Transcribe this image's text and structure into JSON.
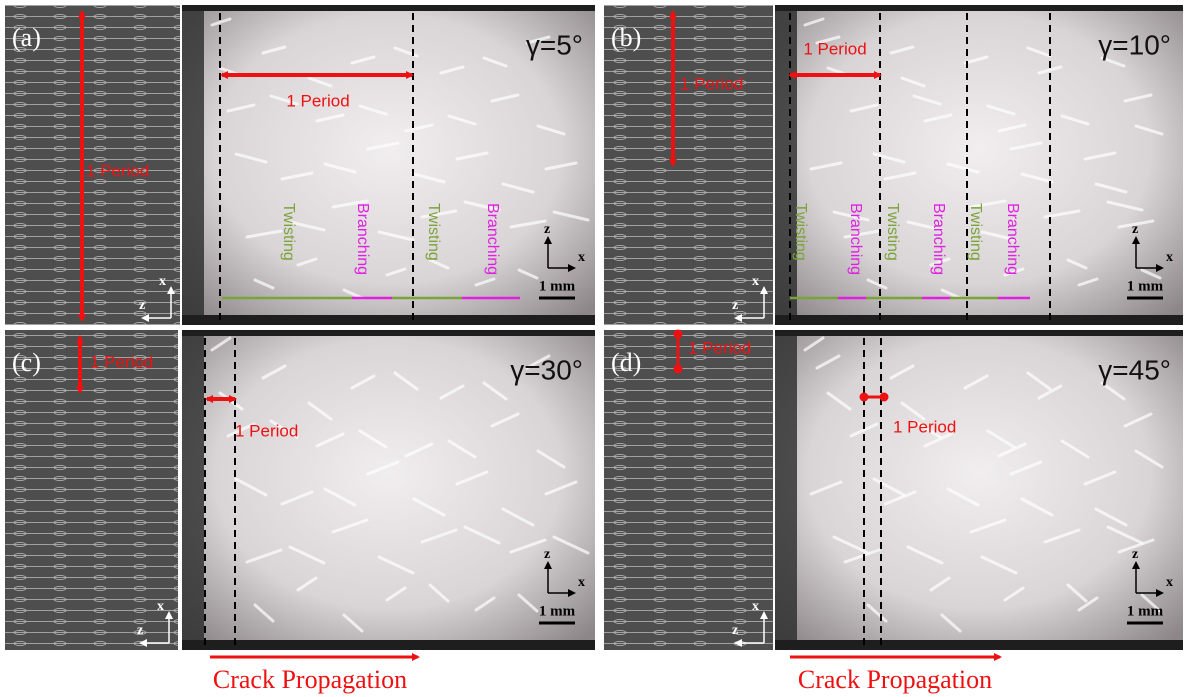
{
  "panels": [
    {
      "label": "(a)",
      "gamma": "γ=5°",
      "period_left": "1 Period",
      "period_right": "1 Period",
      "annotations": [
        {
          "text": "Twisting",
          "color": "#7aa33a"
        },
        {
          "text": "Branching",
          "color": "#e020e0"
        },
        {
          "text": "Twisting",
          "color": "#7aa33a"
        },
        {
          "text": "Branching",
          "color": "#e020e0"
        }
      ],
      "left_axis": [
        "z",
        "x"
      ],
      "photo_axis": [
        "z",
        "x"
      ],
      "scale": "1 mm"
    },
    {
      "label": "(b)",
      "gamma": "γ=10°",
      "period_left": "1 Period",
      "period_right": "1 Period",
      "annotations": [
        {
          "text": "Twisting",
          "color": "#7aa33a"
        },
        {
          "text": "Branching",
          "color": "#e020e0"
        },
        {
          "text": "Twisting",
          "color": "#7aa33a"
        },
        {
          "text": "Branching",
          "color": "#e020e0"
        },
        {
          "text": "Twisting",
          "color": "#7aa33a"
        },
        {
          "text": "Branching",
          "color": "#e020e0"
        }
      ],
      "left_axis": [
        "z",
        "x"
      ],
      "photo_axis": [
        "z",
        "x"
      ],
      "scale": "1 mm"
    },
    {
      "label": "(c)",
      "gamma": "γ=30°",
      "period_left": "1 Period",
      "period_right": "1 Period",
      "annotations": [],
      "left_axis": [
        "z",
        "x"
      ],
      "photo_axis": [
        "z",
        "x"
      ],
      "scale": "1 mm"
    },
    {
      "label": "(d)",
      "gamma": "γ=45°",
      "period_left": "1 Period",
      "period_right": "1 Period",
      "annotations": [],
      "left_axis": [
        "z",
        "x"
      ],
      "photo_axis": [
        "z",
        "x"
      ],
      "scale": "1 mm"
    }
  ],
  "captions": [
    "Crack Propagation",
    "Crack Propagation"
  ]
}
